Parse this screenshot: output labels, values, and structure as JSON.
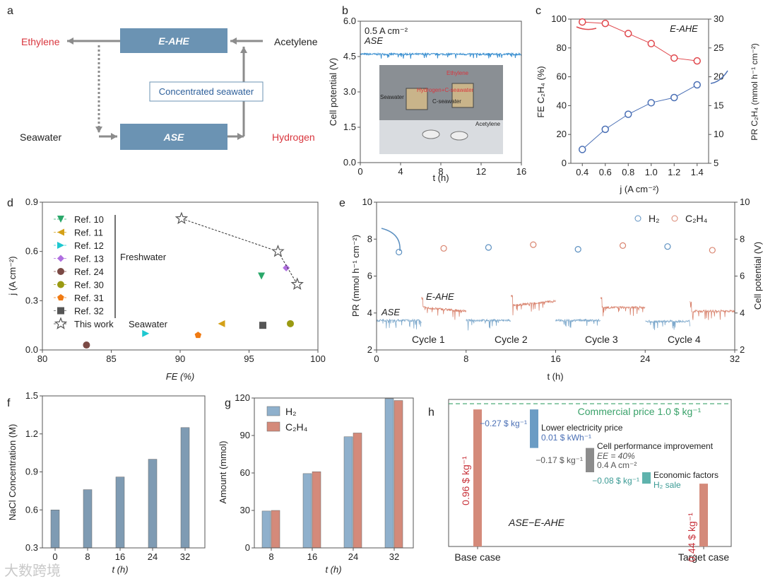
{
  "panel_letters": [
    "a",
    "b",
    "c",
    "d",
    "e",
    "f",
    "g",
    "h"
  ],
  "watermark": "大数跨境",
  "diagram": {
    "ethylene": "Ethylene",
    "eahe": "E-AHE",
    "acetylene": "Acetylene",
    "concentrated": "Concentrated seawater",
    "seawater": "Seawater",
    "ase": "ASE",
    "hydrogen": "Hydrogen",
    "colors": {
      "box": "#6b93b3",
      "product": "#d9363e",
      "arrow": "#8c8c8c"
    }
  },
  "chart_data": [
    {
      "panel": "b",
      "type": "line",
      "xlabel": "t (h)",
      "ylabel": "Cell potential (V)",
      "xlim": [
        0,
        16
      ],
      "ylim": [
        0,
        6
      ],
      "xticks": [
        "0",
        "4",
        "8",
        "12",
        "16"
      ],
      "yticks": [
        "0.0",
        "1.5",
        "3.0",
        "4.5",
        "6.0"
      ],
      "annotations": [
        "0.5 A cm⁻²",
        "ASE"
      ],
      "series": [
        {
          "name": "cell potential",
          "mean": 4.6,
          "color": "#3a8fd0"
        }
      ],
      "inset_labels": [
        "Ethylene",
        "Hydrogen+C-seawater",
        "Seawater",
        "C-seawater",
        "Acetylene"
      ]
    },
    {
      "panel": "c",
      "type": "line",
      "xlabel": "j (A cm⁻²)",
      "ylabel": "FE C₂H₄ (%)",
      "y2label": "PR C₂H₄ (mmol h⁻¹ cm⁻²)",
      "xlim": [
        0.3,
        1.5
      ],
      "ylim": [
        0,
        100
      ],
      "y2lim": [
        5,
        30
      ],
      "xticks": [
        "0.4",
        "0.6",
        "0.8",
        "1.0",
        "1.2",
        "1.4"
      ],
      "yticks": [
        "0",
        "20",
        "40",
        "60",
        "80",
        "100"
      ],
      "y2ticks": [
        "5",
        "10",
        "15",
        "20",
        "25",
        "30"
      ],
      "annotations": [
        "E-AHE"
      ],
      "x": [
        0.4,
        0.6,
        0.8,
        1.0,
        1.2,
        1.4
      ],
      "series": [
        {
          "name": "FE",
          "axis": "left",
          "values": [
            98,
            97,
            90,
            83,
            73,
            71
          ],
          "color": "#e0474c"
        },
        {
          "name": "PR",
          "axis": "right",
          "values": [
            7.4,
            10.9,
            13.5,
            15.5,
            16.4,
            18.6
          ],
          "color": "#4a6fb5"
        }
      ]
    },
    {
      "panel": "d",
      "type": "scatter",
      "xlabel": "FE (%)",
      "ylabel": "j (A cm⁻²)",
      "xlim": [
        80,
        100
      ],
      "ylim": [
        0,
        0.9
      ],
      "xticks": [
        "80",
        "85",
        "90",
        "95",
        "100"
      ],
      "yticks": [
        "0.0",
        "0.3",
        "0.6",
        "0.9"
      ],
      "group_labels": [
        "Freshwater",
        "Seawater"
      ],
      "series": [
        {
          "name": "Ref. 10",
          "marker": "tri-down",
          "color": "#2aa86a",
          "points": [
            [
              95.9,
              0.45
            ]
          ]
        },
        {
          "name": "Ref. 11",
          "marker": "tri-left",
          "color": "#d4a017",
          "points": [
            [
              93.0,
              0.16
            ]
          ]
        },
        {
          "name": "Ref. 12",
          "marker": "tri-right",
          "color": "#1ec8d0",
          "points": [
            [
              87.5,
              0.1
            ]
          ]
        },
        {
          "name": "Ref. 13",
          "marker": "diamond",
          "color": "#b06fe0",
          "points": [
            [
              97.7,
              0.5
            ]
          ]
        },
        {
          "name": "Ref. 24",
          "marker": "circle",
          "color": "#7b4a45",
          "points": [
            [
              83.2,
              0.03
            ]
          ]
        },
        {
          "name": "Ref. 30",
          "marker": "circle",
          "color": "#9a9a12",
          "points": [
            [
              98.0,
              0.16
            ]
          ]
        },
        {
          "name": "Ref. 31",
          "marker": "pentagon",
          "color": "#f07a12",
          "points": [
            [
              91.3,
              0.09
            ]
          ]
        },
        {
          "name": "Ref. 32",
          "marker": "square",
          "color": "#555555",
          "points": [
            [
              96.0,
              0.15
            ]
          ]
        },
        {
          "name": "This work",
          "marker": "star",
          "color": "#555555",
          "points": [
            [
              90.1,
              0.8
            ],
            [
              97.1,
              0.6
            ],
            [
              98.5,
              0.4
            ]
          ]
        }
      ]
    },
    {
      "panel": "e",
      "type": "line",
      "xlabel": "t (h)",
      "ylabel": "PR (mmol h⁻¹ cm⁻²)",
      "y2label": "Cell potential (V)",
      "xlim": [
        0,
        32
      ],
      "ylim": [
        2,
        10
      ],
      "y2lim": [
        2,
        10
      ],
      "xticks": [
        "0",
        "8",
        "16",
        "24",
        "32"
      ],
      "yticks": [
        "2",
        "4",
        "6",
        "8",
        "10"
      ],
      "y2ticks": [
        "2",
        "4",
        "6",
        "8",
        "10"
      ],
      "annotations": [
        "ASE",
        "E-AHE"
      ],
      "cycles": [
        "Cycle 1",
        "Cycle 2",
        "Cycle 3",
        "Cycle 4"
      ],
      "legend": [
        "H₂",
        "C₂H₄"
      ],
      "pr_series": [
        {
          "name": "H₂",
          "color": "#5b8fc0",
          "x": [
            2,
            10,
            18,
            26
          ],
          "values": [
            7.3,
            7.55,
            7.45,
            7.6
          ]
        },
        {
          "name": "C₂H₄",
          "color": "#d9846f",
          "x": [
            6,
            14,
            22,
            30
          ],
          "values": [
            7.5,
            7.7,
            7.65,
            7.4
          ]
        }
      ],
      "potential_segments": [
        {
          "mode": "ASE",
          "t": [
            0,
            4
          ],
          "v": 3.6,
          "color": "#7ea9cc"
        },
        {
          "mode": "E-AHE",
          "t": [
            4,
            8
          ],
          "v": 4.3,
          "color": "#d9846f"
        },
        {
          "mode": "ASE",
          "t": [
            8,
            12
          ],
          "v": 3.6,
          "color": "#7ea9cc"
        },
        {
          "mode": "E-AHE",
          "t": [
            12,
            16
          ],
          "v": 4.4,
          "color": "#d9846f"
        },
        {
          "mode": "ASE",
          "t": [
            16,
            20
          ],
          "v": 3.6,
          "color": "#7ea9cc"
        },
        {
          "mode": "E-AHE",
          "t": [
            20,
            24
          ],
          "v": 4.3,
          "color": "#d9846f"
        },
        {
          "mode": "ASE",
          "t": [
            24,
            28
          ],
          "v": 3.55,
          "color": "#7ea9cc"
        },
        {
          "mode": "E-AHE",
          "t": [
            28,
            32
          ],
          "v": 4.1,
          "color": "#d9846f"
        }
      ]
    },
    {
      "panel": "f",
      "type": "bar",
      "xlabel": "t (h)",
      "ylabel": "NaCl Concentration (M)",
      "ylim": [
        0.3,
        1.5
      ],
      "categories": [
        "0",
        "8",
        "16",
        "24",
        "32"
      ],
      "yticks": [
        "0.3",
        "0.6",
        "0.9",
        "1.2",
        "1.5"
      ],
      "values": [
        0.6,
        0.76,
        0.86,
        1.0,
        1.25
      ],
      "color": "#7f9bb3"
    },
    {
      "panel": "g",
      "type": "bar",
      "xlabel": "t (h)",
      "ylabel": "Amount (mmol)",
      "ylim": [
        0,
        120
      ],
      "categories": [
        "8",
        "16",
        "24",
        "32"
      ],
      "yticks": [
        "0",
        "30",
        "60",
        "90",
        "120"
      ],
      "series": [
        {
          "name": "H₂",
          "values": [
            29.5,
            59.5,
            89,
            119.5
          ],
          "color": "#8fb0cc"
        },
        {
          "name": "C₂H₄",
          "values": [
            30,
            61,
            92,
            118
          ],
          "color": "#d48a7a"
        }
      ]
    },
    {
      "panel": "h",
      "type": "bar",
      "title_label": "ASE−E-AHE",
      "ylim": [
        0,
        1.03
      ],
      "categories": [
        "Base case",
        "Target case"
      ],
      "commercial_price": {
        "value": 1.0,
        "label": "Commercial price 1.0 $ kg⁻¹",
        "color": "#3aa26a"
      },
      "bars": [
        {
          "name": "Base case",
          "value": 0.96,
          "label": "0.96 $ kg⁻¹",
          "color": "#d48a7a"
        },
        {
          "name": "Target case",
          "value": 0.44,
          "label": "0.44 $ kg⁻¹",
          "color": "#d48a7a"
        }
      ],
      "steps": [
        {
          "delta": -0.27,
          "label": "−0.27 $ kg⁻¹",
          "title": "Lower electricity price",
          "details": [
            "0.01 $ kWh⁻¹"
          ],
          "color": "#6b9cc4",
          "textcolor": "#4a6fb5"
        },
        {
          "delta": -0.17,
          "label": "−0.17 $ kg⁻¹",
          "title": "Cell performance improvement",
          "details": [
            "EE = 40%",
            "0.4 A cm⁻²"
          ],
          "color": "#8c8c8c",
          "textcolor": "#555555"
        },
        {
          "delta": -0.08,
          "label": "−0.08 $ kg⁻¹",
          "title": "Economic factors",
          "details": [
            "H₂ sale"
          ],
          "color": "#5fb3ad",
          "textcolor": "#3a9a94"
        }
      ]
    }
  ]
}
